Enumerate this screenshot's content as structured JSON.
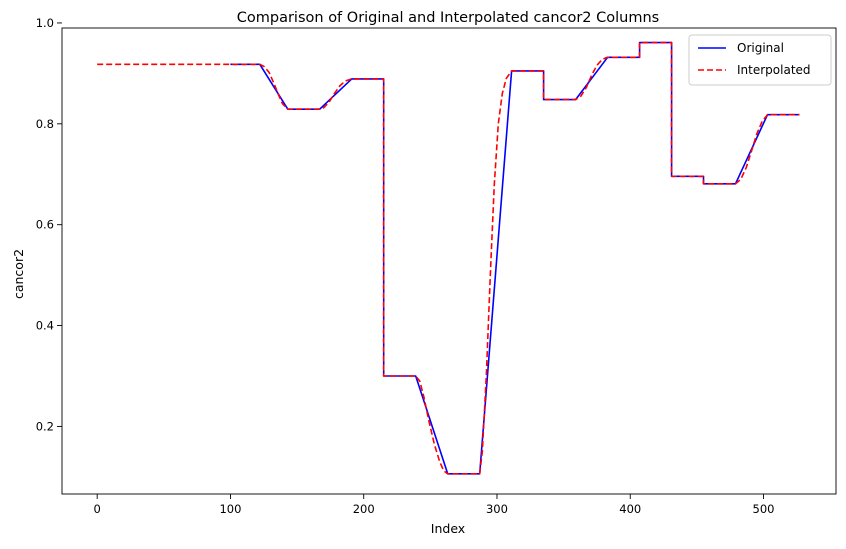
{
  "chart_data": {
    "type": "line",
    "title": "Comparison of Original and Interpolated cancor2 Columns",
    "xlabel": "Index",
    "ylabel": "cancor2",
    "xlim": [
      -26.4,
      554.4
    ],
    "ylim": [
      0.066,
      0.99
    ],
    "xticks": [
      0,
      100,
      200,
      300,
      400,
      500
    ],
    "yticks": [
      0.2,
      0.4,
      0.6,
      0.8,
      1.0
    ],
    "xtick_labels": [
      "0",
      "100",
      "200",
      "300",
      "400",
      "500"
    ],
    "ytick_labels": [
      "0.2",
      "0.4",
      "0.6",
      "0.8",
      "1.0"
    ],
    "grid": false,
    "legend_position": "top-right",
    "series": [
      {
        "name": "Original",
        "color": "#0000ff",
        "style": "solid",
        "points": [
          [
            100,
            0.918
          ],
          [
            122,
            0.918
          ],
          [
            143,
            0.829
          ],
          [
            167,
            0.829
          ],
          [
            191,
            0.889
          ],
          [
            215,
            0.889
          ],
          [
            215,
            0.3
          ],
          [
            239,
            0.3
          ],
          [
            263,
            0.106
          ],
          [
            287,
            0.106
          ],
          [
            311,
            0.905
          ],
          [
            335,
            0.905
          ],
          [
            335,
            0.848
          ],
          [
            359,
            0.848
          ],
          [
            383,
            0.932
          ],
          [
            407,
            0.932
          ],
          [
            407,
            0.961
          ],
          [
            431,
            0.961
          ],
          [
            431,
            0.696
          ],
          [
            455,
            0.696
          ],
          [
            455,
            0.681
          ],
          [
            479,
            0.681
          ],
          [
            503,
            0.818
          ],
          [
            527,
            0.818
          ]
        ]
      },
      {
        "name": "Interpolated",
        "color": "#ff0000",
        "style": "dashed",
        "points": [
          [
            0,
            0.918
          ],
          [
            122,
            0.918
          ],
          [
            125,
            0.914
          ],
          [
            129,
            0.902
          ],
          [
            133,
            0.878
          ],
          [
            136,
            0.858
          ],
          [
            139,
            0.84
          ],
          [
            143,
            0.829
          ],
          [
            167,
            0.829
          ],
          [
            170,
            0.832
          ],
          [
            174,
            0.843
          ],
          [
            178,
            0.86
          ],
          [
            182,
            0.875
          ],
          [
            186,
            0.885
          ],
          [
            191,
            0.889
          ],
          [
            215,
            0.889
          ],
          [
            215,
            0.3
          ],
          [
            239,
            0.3
          ],
          [
            242,
            0.29
          ],
          [
            245,
            0.26
          ],
          [
            249,
            0.21
          ],
          [
            253,
            0.165
          ],
          [
            257,
            0.13
          ],
          [
            260,
            0.112
          ],
          [
            263,
            0.106
          ],
          [
            287,
            0.106
          ],
          [
            289,
            0.15
          ],
          [
            292,
            0.3
          ],
          [
            295,
            0.5
          ],
          [
            298,
            0.68
          ],
          [
            301,
            0.8
          ],
          [
            304,
            0.86
          ],
          [
            307,
            0.89
          ],
          [
            311,
            0.905
          ],
          [
            335,
            0.905
          ],
          [
            335,
            0.848
          ],
          [
            359,
            0.848
          ],
          [
            363,
            0.855
          ],
          [
            367,
            0.872
          ],
          [
            371,
            0.896
          ],
          [
            375,
            0.916
          ],
          [
            379,
            0.928
          ],
          [
            383,
            0.932
          ],
          [
            407,
            0.932
          ],
          [
            407,
            0.961
          ],
          [
            431,
            0.961
          ],
          [
            431,
            0.696
          ],
          [
            455,
            0.696
          ],
          [
            455,
            0.681
          ],
          [
            479,
            0.681
          ],
          [
            483,
            0.69
          ],
          [
            487,
            0.713
          ],
          [
            491,
            0.746
          ],
          [
            495,
            0.78
          ],
          [
            499,
            0.805
          ],
          [
            503,
            0.818
          ],
          [
            527,
            0.818
          ]
        ]
      }
    ]
  }
}
